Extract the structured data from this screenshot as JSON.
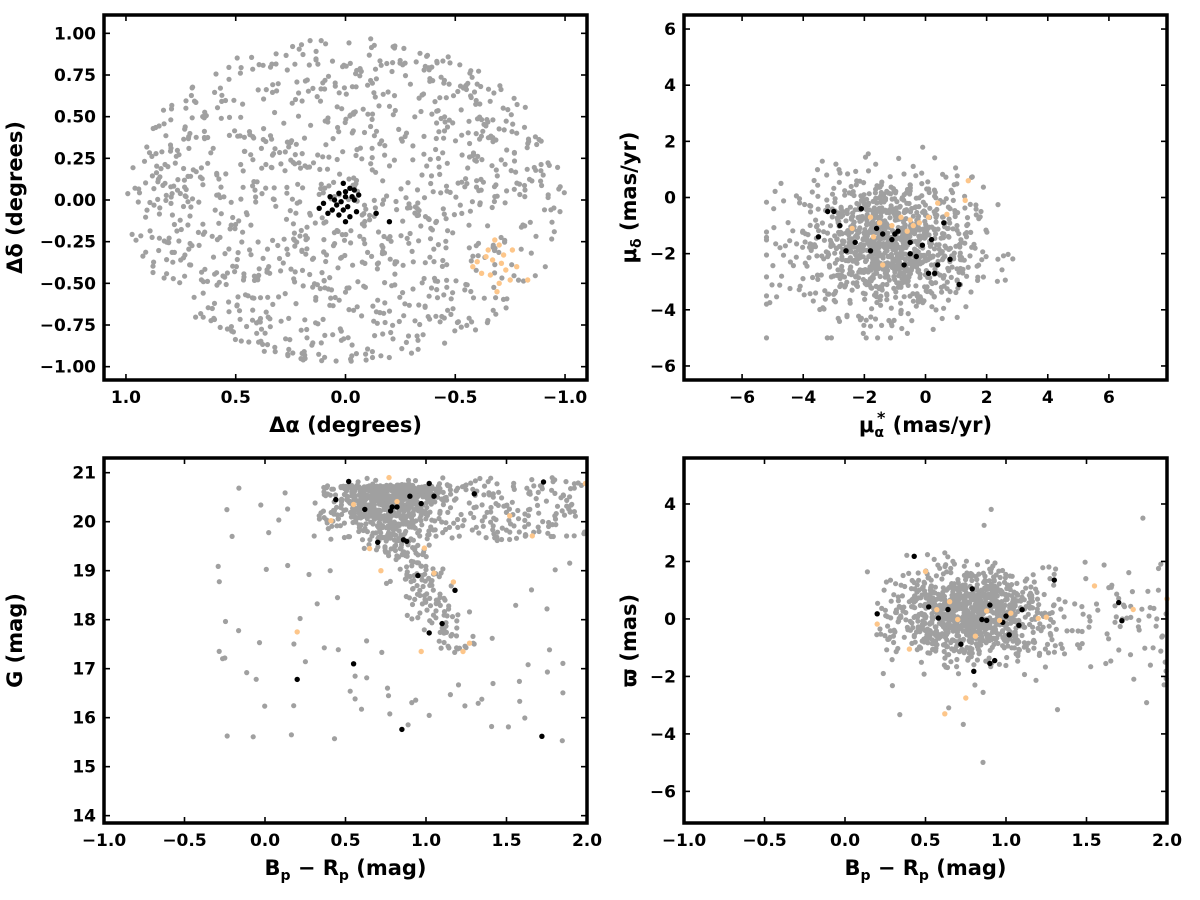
{
  "colors": {
    "field": "#a0a0a0",
    "member": "#000000",
    "candidate": "#fdc68a"
  },
  "chart_data": [
    {
      "type": "scatter",
      "name": "sky-positions",
      "xlabel_main": "Δα",
      "xlabel_unit": " (degrees)",
      "ylabel_main": "Δδ",
      "ylabel_unit": " (degrees)",
      "xlim": [
        1.1,
        -1.1
      ],
      "ylim": [
        -1.08,
        1.11
      ],
      "xticks": [
        1.0,
        0.5,
        0.0,
        -0.5,
        -1.0
      ],
      "xtick_labels": [
        "1.0",
        "0.5",
        "0.0",
        "−0.5",
        "−1.0"
      ],
      "yticks": [
        1.0,
        0.75,
        0.5,
        0.25,
        0.0,
        -0.25,
        -0.5,
        -0.75,
        -1.0
      ],
      "ytick_labels": [
        "1.00",
        "0.75",
        "0.50",
        "0.25",
        "0.00",
        "−0.25",
        "−0.50",
        "−0.75",
        "−1.00"
      ],
      "series": [
        {
          "role": "field",
          "generated": "disk",
          "center": [
            0.0,
            0.0
          ],
          "radius": 1.0,
          "n": 1100
        },
        {
          "role": "member",
          "points": [
            [
              0.01,
              0.1
            ],
            [
              -0.02,
              0.07
            ],
            [
              0.0,
              0.05
            ],
            [
              -0.04,
              0.06
            ],
            [
              0.03,
              0.04
            ],
            [
              -0.06,
              0.03
            ],
            [
              0.07,
              0.02
            ],
            [
              0.05,
              0.0
            ],
            [
              0.1,
              -0.02
            ],
            [
              -0.03,
              0.02
            ],
            [
              0.02,
              -0.01
            ],
            [
              -0.01,
              -0.04
            ],
            [
              0.06,
              -0.06
            ],
            [
              0.12,
              -0.05
            ],
            [
              0.08,
              -0.08
            ],
            [
              -0.05,
              -0.07
            ],
            [
              0.0,
              -0.13
            ],
            [
              0.03,
              -0.09
            ],
            [
              -0.02,
              -0.1
            ],
            [
              -0.04,
              0.0
            ],
            [
              0.0,
              0.02
            ],
            [
              0.01,
              -0.06
            ],
            [
              -0.14,
              -0.08
            ],
            [
              -0.2,
              -0.13
            ],
            [
              0.04,
              -0.03
            ]
          ]
        },
        {
          "role": "candidate",
          "points": [
            [
              -0.68,
              -0.24
            ],
            [
              -0.7,
              -0.27
            ],
            [
              -0.65,
              -0.3
            ],
            [
              -0.72,
              -0.33
            ],
            [
              -0.67,
              -0.36
            ],
            [
              -0.6,
              -0.37
            ],
            [
              -0.73,
              -0.42
            ],
            [
              -0.66,
              -0.45
            ],
            [
              -0.75,
              -0.48
            ],
            [
              -0.7,
              -0.5
            ],
            [
              -0.62,
              -0.44
            ],
            [
              -0.78,
              -0.4
            ],
            [
              -0.64,
              -0.34
            ],
            [
              -0.69,
              -0.55
            ],
            [
              -0.83,
              -0.48
            ],
            [
              -0.58,
              -0.4
            ],
            [
              -0.71,
              -0.38
            ],
            [
              -0.76,
              -0.3
            ]
          ]
        }
      ]
    },
    {
      "type": "scatter",
      "name": "proper-motion",
      "xlabel_main": "μ",
      "xlabel_sub": "α",
      "xlabel_sup": "*",
      "xlabel_unit": "  (mas/yr)",
      "ylabel_main": "μ",
      "ylabel_sub": "δ",
      "ylabel_unit": " (mas/yr)",
      "xlim": [
        -7.9,
        7.9
      ],
      "ylim": [
        -6.5,
        6.5
      ],
      "xticks": [
        -6,
        -4,
        -2,
        0,
        2,
        4,
        6
      ],
      "xtick_labels": [
        "−6",
        "−4",
        "−2",
        "0",
        "2",
        "4",
        "6"
      ],
      "yticks": [
        6,
        4,
        2,
        0,
        -2,
        -4,
        -6
      ],
      "ytick_labels": [
        "6",
        "4",
        "2",
        "0",
        "−2",
        "−4",
        "−6"
      ],
      "series": [
        {
          "role": "field",
          "generated": "blob",
          "center": [
            -1.3,
            -1.7
          ],
          "spread": [
            1.4,
            1.2
          ],
          "n": 1100
        },
        {
          "role": "member",
          "points": [
            [
              -3.2,
              -0.5
            ],
            [
              -3.0,
              -0.5
            ],
            [
              -2.8,
              -1.0
            ],
            [
              -3.5,
              -1.4
            ],
            [
              -2.6,
              -1.9
            ],
            [
              -2.3,
              -1.6
            ],
            [
              -2.1,
              -0.4
            ],
            [
              -1.8,
              -1.9
            ],
            [
              -1.4,
              -1.3
            ],
            [
              -1.1,
              -1.5
            ],
            [
              -0.9,
              -1.2
            ],
            [
              -0.7,
              -2.4
            ],
            [
              -0.5,
              -2.0
            ],
            [
              -0.3,
              -2.1
            ],
            [
              -0.5,
              -1.6
            ],
            [
              -0.1,
              -1.7
            ],
            [
              0.1,
              -2.7
            ],
            [
              0.3,
              -2.7
            ],
            [
              0.4,
              -2.4
            ],
            [
              0.2,
              -1.5
            ],
            [
              0.6,
              -0.9
            ],
            [
              0.8,
              -2.2
            ],
            [
              1.1,
              -3.1
            ],
            [
              -1.6,
              -1.1
            ],
            [
              -1.0,
              -1.3
            ]
          ]
        },
        {
          "role": "candidate",
          "points": [
            [
              -2.4,
              -1.1
            ],
            [
              -1.8,
              -0.7
            ],
            [
              -1.5,
              -0.9
            ],
            [
              -1.1,
              -1.0
            ],
            [
              -0.8,
              -0.7
            ],
            [
              -0.5,
              -0.8
            ],
            [
              -0.2,
              -0.9
            ],
            [
              0.1,
              -0.7
            ],
            [
              0.4,
              -0.2
            ],
            [
              0.7,
              -0.6
            ],
            [
              1.4,
              0.6
            ],
            [
              1.3,
              -0.1
            ],
            [
              -1.4,
              -2.4
            ],
            [
              -0.6,
              -1.2
            ],
            [
              -0.4,
              -1.0
            ],
            [
              -1.7,
              -1.4
            ]
          ]
        }
      ]
    },
    {
      "type": "scatter",
      "name": "cmd-g",
      "xlabel_main": "B",
      "xlabel_sub1": "p",
      "xlabel_mid": " − R",
      "xlabel_sub2": "p",
      "xlabel_unit": " (mag)",
      "ylabel_main": "G",
      "ylabel_unit": " (mag)",
      "xlim": [
        -1.0,
        2.0
      ],
      "ylim": [
        13.85,
        21.3
      ],
      "xticks": [
        -1.0,
        -0.5,
        0.0,
        0.5,
        1.0,
        1.5,
        2.0
      ],
      "xtick_labels": [
        "−1.0",
        "−0.5",
        "0.0",
        "0.5",
        "1.0",
        "1.5",
        "2.0"
      ],
      "yticks": [
        21,
        20,
        19,
        18,
        17,
        16,
        15,
        14
      ],
      "ytick_labels": [
        "21",
        "20",
        "19",
        "18",
        "17",
        "16",
        "15",
        "14"
      ],
      "series": [
        {
          "role": "field",
          "generated": "cmd",
          "n": 1100
        },
        {
          "role": "member",
          "points": [
            [
              0.52,
              20.82
            ],
            [
              0.44,
              20.45
            ],
            [
              0.62,
              20.25
            ],
            [
              0.7,
              19.58
            ],
            [
              0.79,
              20.3
            ],
            [
              0.86,
              19.63
            ],
            [
              0.9,
              20.52
            ],
            [
              0.97,
              20.37
            ],
            [
              1.02,
              20.78
            ],
            [
              1.05,
              20.52
            ],
            [
              1.3,
              20.57
            ],
            [
              1.73,
              20.81
            ],
            [
              0.95,
              18.9
            ],
            [
              1.1,
              17.92
            ],
            [
              1.18,
              18.6
            ],
            [
              1.02,
              17.73
            ],
            [
              0.55,
              17.1
            ],
            [
              0.2,
              16.78
            ],
            [
              0.85,
              15.76
            ],
            [
              1.72,
              15.62
            ],
            [
              0.82,
              20.3
            ],
            [
              0.88,
              19.6
            ],
            [
              0.78,
              20.22
            ]
          ]
        },
        {
          "role": "candidate",
          "points": [
            [
              0.41,
              20.02
            ],
            [
              0.55,
              20.35
            ],
            [
              0.77,
              20.9
            ],
            [
              0.82,
              20.41
            ],
            [
              0.99,
              19.46
            ],
            [
              1.17,
              18.77
            ],
            [
              1.23,
              17.35
            ],
            [
              1.27,
              17.52
            ],
            [
              0.2,
              17.75
            ],
            [
              0.97,
              17.35
            ],
            [
              1.66,
              19.71
            ],
            [
              1.52,
              20.12
            ],
            [
              1.99,
              20.78
            ],
            [
              0.65,
              19.45
            ],
            [
              0.72,
              19.0
            ],
            [
              1.05,
              18.95
            ]
          ]
        }
      ]
    },
    {
      "type": "scatter",
      "name": "cmd-parallax",
      "xlabel_main": "B",
      "xlabel_sub1": "p",
      "xlabel_mid": " − R",
      "xlabel_sub2": "p",
      "xlabel_unit": " (mag)",
      "ylabel_main": "ϖ",
      "ylabel_unit": " (mas)",
      "xlim": [
        -1.0,
        2.0
      ],
      "ylim": [
        -7.1,
        5.6
      ],
      "xticks": [
        -1.0,
        -0.5,
        0.0,
        0.5,
        1.0,
        1.5,
        2.0
      ],
      "xtick_labels": [
        "−1.0",
        "−0.5",
        "0.0",
        "0.5",
        "1.0",
        "1.5",
        "2.0"
      ],
      "yticks": [
        4,
        2,
        0,
        -2,
        -4,
        -6
      ],
      "ytick_labels": [
        "4",
        "2",
        "0",
        "−2",
        "−4",
        "−6"
      ],
      "series": [
        {
          "role": "field",
          "generated": "blob2",
          "n": 1100
        },
        {
          "role": "member",
          "points": [
            [
              0.43,
              2.18
            ],
            [
              0.2,
              0.18
            ],
            [
              0.52,
              0.42
            ],
            [
              0.58,
              0.03
            ],
            [
              0.64,
              0.33
            ],
            [
              0.72,
              -0.88
            ],
            [
              0.79,
              1.05
            ],
            [
              0.8,
              -1.82
            ],
            [
              0.85,
              -0.02
            ],
            [
              0.9,
              -1.55
            ],
            [
              0.93,
              -1.45
            ],
            [
              0.9,
              0.48
            ],
            [
              0.98,
              -0.12
            ],
            [
              1.0,
              0.1
            ],
            [
              1.02,
              -0.55
            ],
            [
              1.08,
              -0.22
            ],
            [
              1.1,
              0.32
            ],
            [
              1.3,
              1.35
            ],
            [
              1.7,
              0.57
            ],
            [
              1.72,
              -0.06
            ],
            [
              0.88,
              -0.05
            ]
          ]
        },
        {
          "role": "candidate",
          "points": [
            [
              0.2,
              -0.18
            ],
            [
              0.4,
              -1.05
            ],
            [
              0.5,
              1.65
            ],
            [
              0.57,
              0.32
            ],
            [
              0.62,
              -3.3
            ],
            [
              0.7,
              -0.02
            ],
            [
              0.75,
              -2.75
            ],
            [
              0.81,
              -0.6
            ],
            [
              0.96,
              -0.05
            ],
            [
              1.03,
              0.2
            ],
            [
              1.2,
              0.02
            ],
            [
              1.25,
              0.06
            ],
            [
              1.55,
              1.15
            ],
            [
              1.79,
              0.33
            ],
            [
              2.0,
              0.7
            ],
            [
              0.65,
              0.6
            ],
            [
              0.88,
              0.28
            ]
          ]
        }
      ]
    }
  ]
}
